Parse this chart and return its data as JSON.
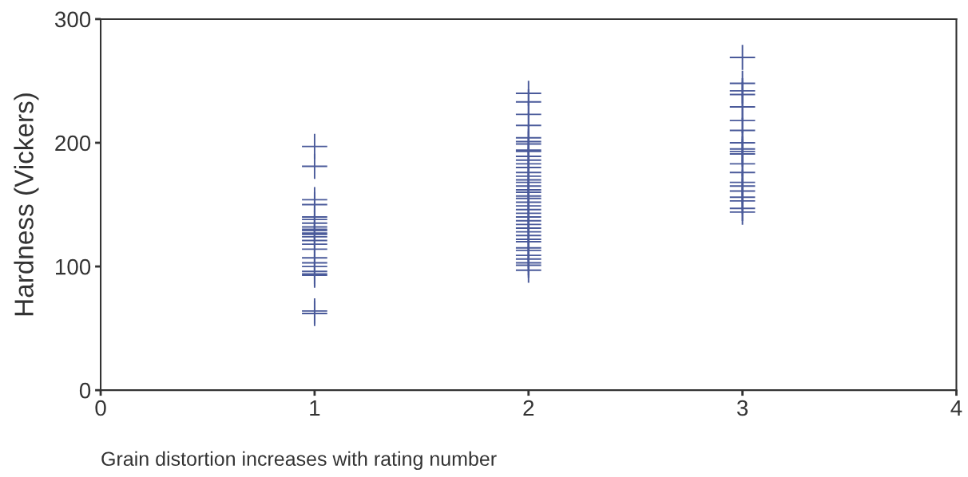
{
  "chart_data": {
    "type": "scatter",
    "xlabel": "Grain distortion increases with rating number",
    "ylabel": "Hardness (Vickers)",
    "xlim": [
      0,
      4
    ],
    "xticks": [
      0,
      1,
      2,
      3,
      4
    ],
    "ylim": [
      0,
      300
    ],
    "yticks": [
      0,
      100,
      200,
      300
    ],
    "grid": false,
    "marker": "cross",
    "series": [
      {
        "color": "#4a5a9a",
        "x": [
          1,
          1,
          1,
          1,
          1,
          1,
          1,
          1,
          1,
          1,
          1,
          1,
          1,
          1,
          1,
          1,
          1,
          1,
          1,
          1,
          1,
          1,
          1,
          1,
          2,
          2,
          2,
          2,
          2,
          2,
          2,
          2,
          2,
          2,
          2,
          2,
          2,
          2,
          2,
          2,
          2,
          2,
          2,
          2,
          2,
          2,
          2,
          2,
          2,
          2,
          2,
          2,
          2,
          2,
          2,
          2,
          2,
          2,
          2,
          2,
          2,
          2,
          2,
          2,
          2,
          3,
          3,
          3,
          3,
          3,
          3,
          3,
          3,
          3,
          3,
          3,
          3,
          3,
          3,
          3,
          3,
          3,
          3,
          3,
          3
        ],
        "values": [
          197,
          181,
          154,
          150,
          140,
          138,
          135,
          132,
          129,
          126,
          124,
          121,
          118,
          114,
          107,
          103,
          100,
          96,
          94,
          93,
          64,
          62,
          130,
          127,
          240,
          233,
          223,
          214,
          204,
          201,
          199,
          194,
          193,
          189,
          186,
          183,
          180,
          176,
          173,
          170,
          168,
          165,
          162,
          160,
          157,
          152,
          149,
          146,
          143,
          140,
          137,
          134,
          131,
          128,
          125,
          122,
          120,
          115,
          113,
          109,
          106,
          103,
          101,
          97,
          155,
          269,
          248,
          242,
          239,
          229,
          218,
          210,
          200,
          195,
          193,
          191,
          183,
          176,
          168,
          165,
          161,
          156,
          153,
          147,
          144
        ]
      }
    ]
  }
}
